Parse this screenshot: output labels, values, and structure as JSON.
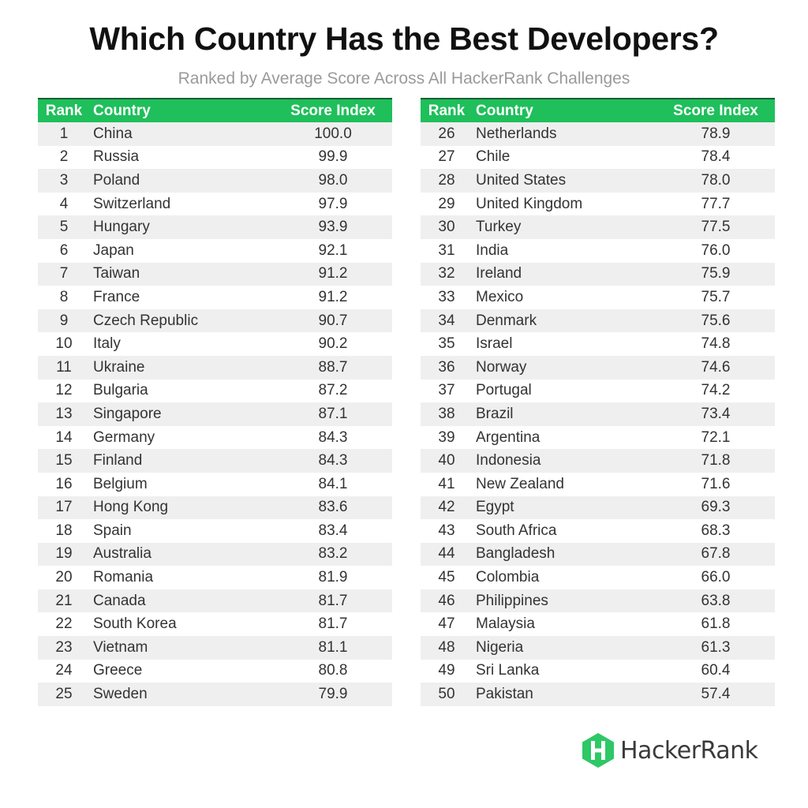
{
  "header": {
    "title": "Which Country Has the Best Developers?",
    "subtitle": "Ranked by Average Score Across All HackerRank Challenges"
  },
  "brand": {
    "name": "HackerRank",
    "icon": "hackerrank-logo-icon",
    "color": "#2ec866"
  },
  "colors": {
    "header_bg": "#1fbf5b",
    "header_border": "#1b5e35",
    "stripe": "#efefef"
  },
  "chart_data": {
    "type": "table",
    "columns": [
      "Rank",
      "Country",
      "Score Index"
    ],
    "rows": [
      [
        "1",
        "China",
        "100.0"
      ],
      [
        "2",
        "Russia",
        "99.9"
      ],
      [
        "3",
        "Poland",
        "98.0"
      ],
      [
        "4",
        "Switzerland",
        "97.9"
      ],
      [
        "5",
        "Hungary",
        "93.9"
      ],
      [
        "6",
        "Japan",
        "92.1"
      ],
      [
        "7",
        "Taiwan",
        "91.2"
      ],
      [
        "8",
        "France",
        "91.2"
      ],
      [
        "9",
        "Czech Republic",
        "90.7"
      ],
      [
        "10",
        "Italy",
        "90.2"
      ],
      [
        "11",
        "Ukraine",
        "88.7"
      ],
      [
        "12",
        "Bulgaria",
        "87.2"
      ],
      [
        "13",
        "Singapore",
        "87.1"
      ],
      [
        "14",
        "Germany",
        "84.3"
      ],
      [
        "15",
        "Finland",
        "84.3"
      ],
      [
        "16",
        "Belgium",
        "84.1"
      ],
      [
        "17",
        "Hong Kong",
        "83.6"
      ],
      [
        "18",
        "Spain",
        "83.4"
      ],
      [
        "19",
        "Australia",
        "83.2"
      ],
      [
        "20",
        "Romania",
        "81.9"
      ],
      [
        "21",
        "Canada",
        "81.7"
      ],
      [
        "22",
        "South Korea",
        "81.7"
      ],
      [
        "23",
        "Vietnam",
        "81.1"
      ],
      [
        "24",
        "Greece",
        "80.8"
      ],
      [
        "25",
        "Sweden",
        "79.9"
      ],
      [
        "26",
        "Netherlands",
        "78.9"
      ],
      [
        "27",
        "Chile",
        "78.4"
      ],
      [
        "28",
        "United States",
        "78.0"
      ],
      [
        "29",
        "United Kingdom",
        "77.7"
      ],
      [
        "30",
        "Turkey",
        "77.5"
      ],
      [
        "31",
        "India",
        "76.0"
      ],
      [
        "32",
        "Ireland",
        "75.9"
      ],
      [
        "33",
        "Mexico",
        "75.7"
      ],
      [
        "34",
        "Denmark",
        "75.6"
      ],
      [
        "35",
        "Israel",
        "74.8"
      ],
      [
        "36",
        "Norway",
        "74.6"
      ],
      [
        "37",
        "Portugal",
        "74.2"
      ],
      [
        "38",
        "Brazil",
        "73.4"
      ],
      [
        "39",
        "Argentina",
        "72.1"
      ],
      [
        "40",
        "Indonesia",
        "71.8"
      ],
      [
        "41",
        "New Zealand",
        "71.6"
      ],
      [
        "42",
        "Egypt",
        "69.3"
      ],
      [
        "43",
        "South Africa",
        "68.3"
      ],
      [
        "44",
        "Bangladesh",
        "67.8"
      ],
      [
        "45",
        "Colombia",
        "66.0"
      ],
      [
        "46",
        "Philippines",
        "63.8"
      ],
      [
        "47",
        "Malaysia",
        "61.8"
      ],
      [
        "48",
        "Nigeria",
        "61.3"
      ],
      [
        "49",
        "Sri Lanka",
        "60.4"
      ],
      [
        "50",
        "Pakistan",
        "57.4"
      ]
    ]
  }
}
